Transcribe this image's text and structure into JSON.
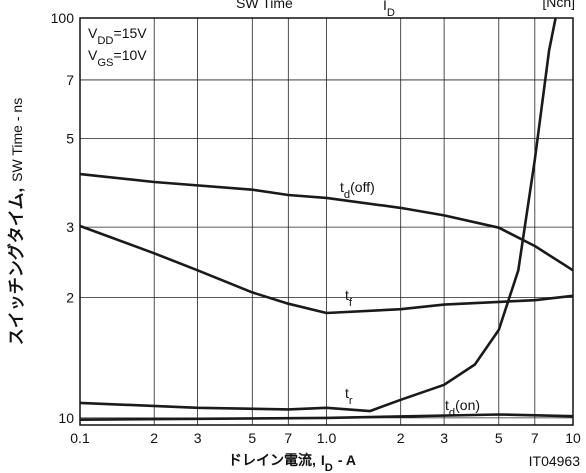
{
  "chart_data": {
    "type": "line",
    "title": "SW Time",
    "title_symbol": "I",
    "title_subscript": "D",
    "title_note": "[Nch]",
    "annotations": [
      {
        "text": "V",
        "subscript": "DD",
        "suffix": "=15V"
      },
      {
        "text": "V",
        "subscript": "GS",
        "suffix": "=10V"
      }
    ],
    "xlabel": "ドレイン電流,",
    "xlabel_symbol": "I",
    "xlabel_subscript": "D",
    "xlabel_suffix": "- A",
    "ylabel": "スイッチングタイム,",
    "ylabel_en": "SW Time - ns",
    "code": "IT04963",
    "log_x": true,
    "log_y": true,
    "grid": true,
    "xlim": [
      0.1,
      10
    ],
    "ylim": [
      9.6,
      100
    ],
    "xticks": [
      0.1,
      {
        "value": 0.2,
        "label": "2"
      },
      {
        "value": 0.3,
        "label": "3"
      },
      {
        "value": 0.5,
        "label": "5"
      },
      {
        "value": 0.7,
        "label": "7"
      },
      {
        "value": 1,
        "label": "1.0"
      },
      {
        "value": 2,
        "label": "2"
      },
      {
        "value": 3,
        "label": "3"
      },
      {
        "value": 5,
        "label": "5"
      },
      {
        "value": 7,
        "label": "7"
      },
      10
    ],
    "yticks": [
      10,
      {
        "value": 20,
        "label": "2"
      },
      {
        "value": 30,
        "label": "3"
      },
      {
        "value": 50,
        "label": "5"
      },
      {
        "value": 70,
        "label": "7"
      },
      100
    ],
    "series": [
      {
        "name": "t",
        "name_subscript": "d",
        "name_suffix": "(off)",
        "color": "#1a1a1a",
        "x": [
          0.1,
          0.2,
          0.5,
          0.7,
          1,
          2,
          3,
          5,
          7,
          10
        ],
        "values": [
          40.7,
          38.9,
          37.2,
          36.1,
          35.5,
          33.5,
          32.1,
          29.9,
          26.9,
          23.4
        ]
      },
      {
        "name": "t",
        "name_subscript": "f",
        "name_suffix": "",
        "color": "#1a1a1a",
        "x": [
          0.1,
          0.2,
          0.3,
          0.5,
          0.7,
          1,
          2,
          3,
          5,
          7,
          10
        ],
        "values": [
          30.2,
          25.8,
          23.4,
          20.6,
          19.3,
          18.3,
          18.7,
          19.2,
          19.5,
          19.7,
          20.2
        ]
      },
      {
        "name": "t",
        "name_subscript": "r",
        "name_suffix": "",
        "color": "#1a1a1a",
        "x": [
          0.1,
          0.3,
          0.7,
          1,
          1.5,
          2,
          3,
          4,
          5,
          6,
          7,
          8,
          8.5
        ],
        "values": [
          10.9,
          10.6,
          10.5,
          10.6,
          10.4,
          11.1,
          12.1,
          13.6,
          16.6,
          23.4,
          44.2,
          83,
          100
        ]
      },
      {
        "name": "t",
        "name_subscript": "d",
        "name_suffix": "(on)",
        "color": "#1a1a1a",
        "x": [
          0.1,
          1,
          5,
          10
        ],
        "values": [
          9.9,
          10,
          10.2,
          10.1
        ]
      }
    ]
  }
}
